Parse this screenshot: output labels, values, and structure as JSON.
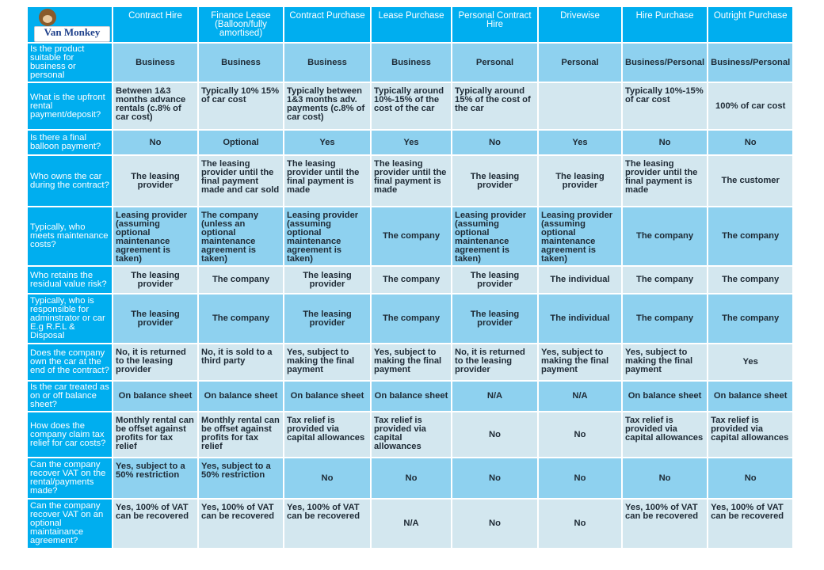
{
  "logo": {
    "text": "Van Monkey"
  },
  "columns": [
    "Contract Hire",
    "Finance Lease (Balloon/fully amortised)",
    "Contract Purchase",
    "Lease Purchase",
    "Personal Contract Hire",
    "Drivewise",
    "Hire Purchase",
    "Outright Purchase"
  ],
  "rows": [
    {
      "question": "Is the product suitable for business or personal",
      "values": [
        "Business",
        "Business",
        "Business",
        "Business",
        "Personal",
        "Personal",
        "Business/Personal",
        "Business/Personal"
      ]
    },
    {
      "question": "What is the upfront rental payment/deposit?",
      "values": [
        "Between 1&3 months advance rentals (c.8% of car cost)",
        "Typically 10% 15% of car cost",
        "Typically between 1&3 months adv. payments (c.8% of car cost)",
        "Typically around 10%-15% of the cost of the car",
        "Typically around 15% of the cost of the car",
        "",
        "Typically 10%-15% of car cost",
        "100% of car cost"
      ]
    },
    {
      "question": "Is there a final balloon payment?",
      "values": [
        "No",
        "Optional",
        "Yes",
        "Yes",
        "No",
        "Yes",
        "No",
        "No"
      ]
    },
    {
      "question": "Who owns the car during the contract?",
      "values": [
        "The leasing provider",
        "The leasing provider until the final payment made and car sold",
        "The leasing provider until the final payment is made",
        "The leasing provider until the final payment is made",
        "The leasing provider",
        "The leasing provider",
        "The leasing provider until the final payment is made",
        "The customer"
      ]
    },
    {
      "question": "Typically, who meets maintenance costs?",
      "values": [
        "Leasing provider (assuming optional maintenance agreement is taken)",
        "The company (unless an optional maintenance agreement is taken)",
        "Leasing provider (assuming optional maintenance agreement is taken)",
        "The company",
        "Leasing provider (assuming optional maintenance agreement is taken)",
        "Leasing provider (assuming optional maintenance agreement is taken)",
        "The company",
        "The company"
      ]
    },
    {
      "question": "Who retains the residual value risk?",
      "values": [
        "The leasing provider",
        "The company",
        "The leasing provider",
        "The company",
        "The leasing provider",
        "The individual",
        "The company",
        "The company"
      ]
    },
    {
      "question": "Typically, who is responsible for adminstrator or car E.g R.F.L & Disposal",
      "values": [
        "The leasing provider",
        "The company",
        "The leasing provider",
        "The company",
        "The leasing provider",
        "The individual",
        "The company",
        "The company"
      ]
    },
    {
      "question": "Does the company own the car at the end of the contract?",
      "values": [
        "No, it is returned to the leasing provider",
        "No, it is sold to a third party",
        "Yes, subject to making the final payment",
        "Yes, subject to making the final payment",
        "No, it is returned to the leasing provider",
        "Yes, subject to making the final payment",
        "Yes, subject to making the final payment",
        "Yes"
      ]
    },
    {
      "question": "Is the car treated as on or off balance sheet?",
      "values": [
        "On balance sheet",
        "On balance sheet",
        "On balance sheet",
        "On balance sheet",
        "N/A",
        "N/A",
        "On balance sheet",
        "On balance sheet"
      ]
    },
    {
      "question": "How does the company claim tax relief for car costs?",
      "values": [
        "Monthly rental can be offset against profits for tax relief",
        "Monthly rental can be offset against profits for tax relief",
        "Tax relief is provided via capital allowances",
        "Tax relief is provided via capital allowances",
        "No",
        "No",
        "Tax relief is provided via capital allowances",
        "Tax relief is provided via capital allowances"
      ]
    },
    {
      "question": "Can the company recover VAT on the rental/payments made?",
      "values": [
        "Yes, subject to a 50% restriction",
        "Yes, subject to a 50% restriction",
        "No",
        "No",
        "No",
        "No",
        "No",
        "No"
      ]
    },
    {
      "question": "Can the company recover VAT on an optional maintainance agreement?",
      "values": [
        "Yes, 100% of VAT can be recovered",
        "Yes, 100% of VAT can be recovered",
        "Yes, 100% of VAT can be recovered",
        "N/A",
        "No",
        "No",
        "Yes, 100% of VAT can be recovered",
        "Yes, 100% of VAT can be recovered"
      ]
    }
  ],
  "colors": {
    "header": "#00aeef",
    "row_light": "#8ed1ef",
    "row_pale": "#d3e7ef",
    "text": "#1e2a35"
  }
}
